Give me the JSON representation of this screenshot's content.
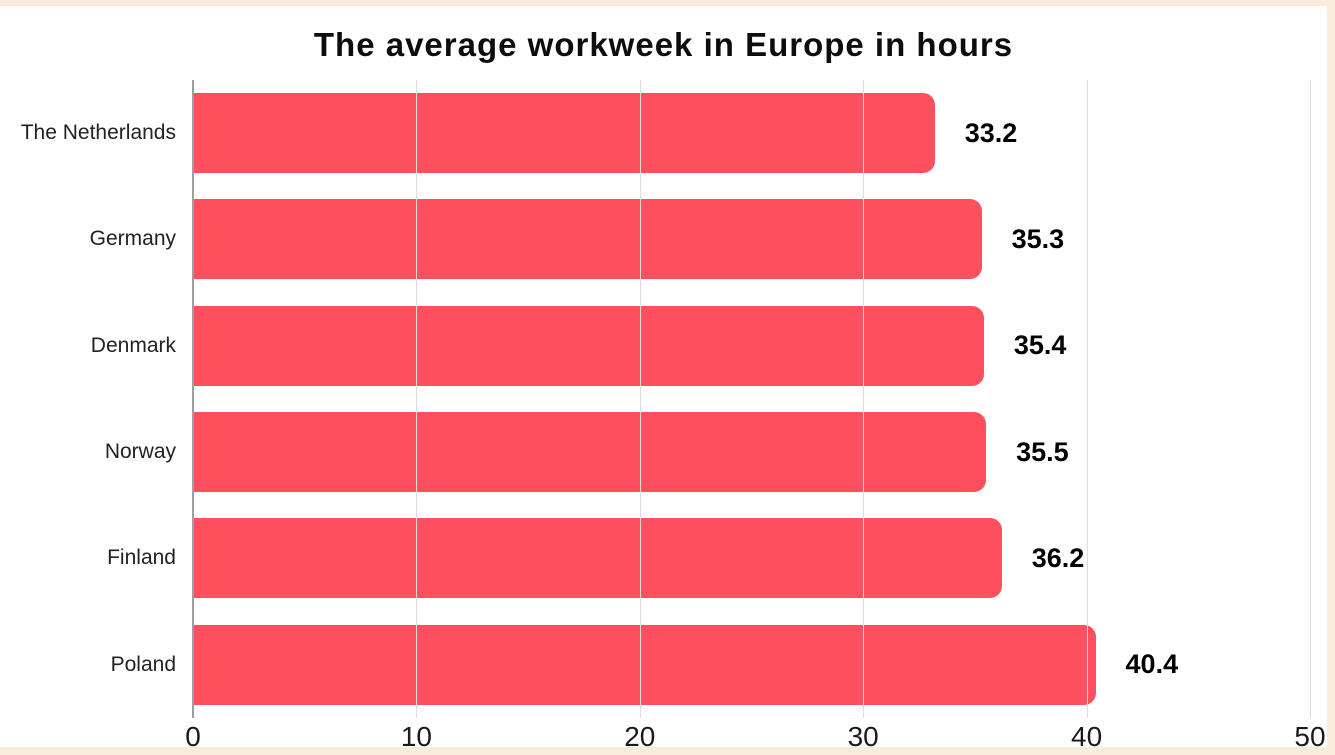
{
  "title": "The average workweek in Europe in hours",
  "colors": {
    "bar": "#FC505F",
    "frame_background": "#F8EDDC",
    "card_background": "#FFFFFF",
    "gridline": "#DCDCDC",
    "zero_axis_line": "#9E9E9E",
    "title_text": "#0D0D0D",
    "label_text": "#222222",
    "value_text": "#000000"
  },
  "chart_data": {
    "type": "bar",
    "orientation": "horizontal",
    "title": "The average workweek in Europe in hours",
    "categories": [
      "The Netherlands",
      "Germany",
      "Denmark",
      "Norway",
      "Finland",
      "Poland"
    ],
    "values": [
      33.2,
      35.3,
      35.4,
      35.5,
      36.2,
      40.4
    ],
    "value_labels": [
      "33.2",
      "35.3",
      "35.4",
      "35.5",
      "36.2",
      "40.4"
    ],
    "xlabel": "",
    "ylabel": "",
    "xlim": [
      0,
      50
    ],
    "xticks": [
      0,
      10,
      20,
      30,
      40,
      50
    ],
    "grid": "vertical-only",
    "legend": false,
    "bar_color": "#FC505F",
    "sort_order": "ascending-top-to-bottom"
  }
}
